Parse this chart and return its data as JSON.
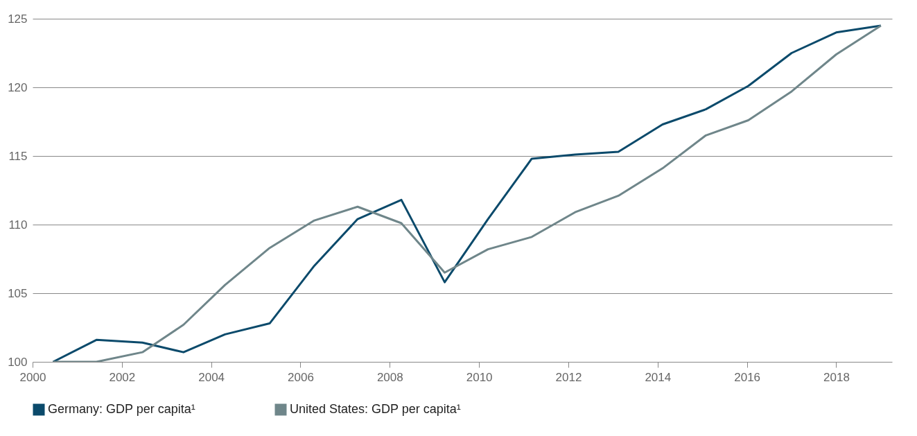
{
  "chart_data": {
    "type": "line",
    "xlim": [
      2000,
      2019.25
    ],
    "xticks": [
      2000,
      2002,
      2004,
      2006,
      2008,
      2010,
      2012,
      2014,
      2016,
      2018
    ],
    "ylim": [
      100,
      125
    ],
    "yticks": [
      100,
      105,
      110,
      115,
      120,
      125
    ],
    "grid": "y",
    "legend": "bottom",
    "line_style": "solid",
    "x": [
      2000.46,
      2001.43,
      2002.46,
      2003.38,
      2004.31,
      2005.31,
      2006.31,
      2007.28,
      2008.26,
      2009.23,
      2010.2,
      2011.18,
      2012.15,
      2013.12,
      2014.11,
      2015.08,
      2016.03,
      2017.0,
      2018.0,
      2019.0
    ],
    "series": [
      {
        "name": "Germany: GDP per capita¹",
        "color": "#0b4a6b",
        "values": [
          100,
          101.6,
          101.4,
          100.7,
          102.0,
          102.8,
          107.0,
          110.4,
          111.8,
          105.8,
          110.4,
          114.8,
          115.1,
          115.3,
          117.3,
          118.4,
          120.1,
          122.5,
          124.0,
          124.5
        ]
      },
      {
        "name": "United States: GDP per capita¹",
        "color": "#6f868a",
        "values": [
          100,
          100,
          100.7,
          102.7,
          105.6,
          108.3,
          110.3,
          111.3,
          110.1,
          106.5,
          108.2,
          109.1,
          110.9,
          112.1,
          114.1,
          116.5,
          117.6,
          119.7,
          122.4,
          124.5
        ]
      }
    ]
  }
}
